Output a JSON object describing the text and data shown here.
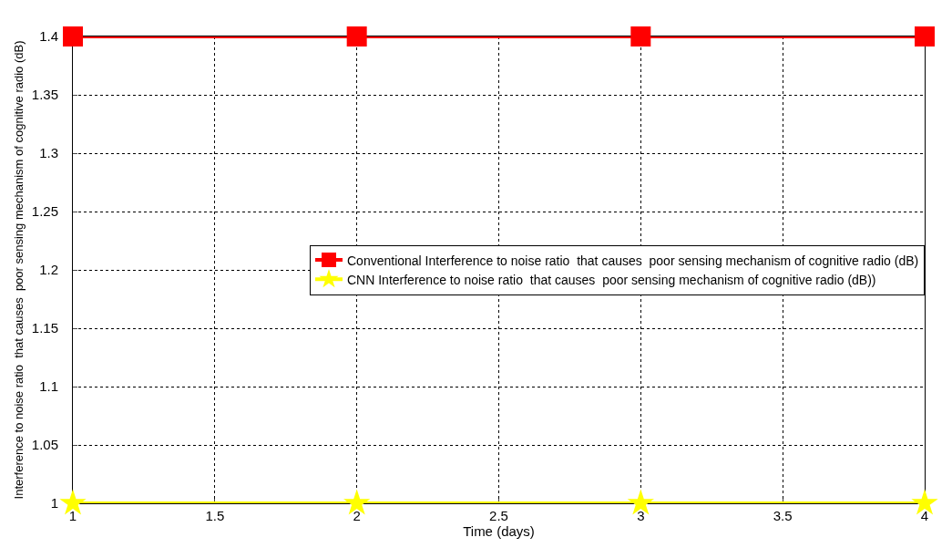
{
  "chart_data": {
    "type": "line",
    "xlabel": "Time (days)",
    "ylabel": "Interference to noise ratio  that causes  poor sensing mechanism of cognitive radio (dB)",
    "x": [
      1,
      2,
      3,
      4
    ],
    "series": [
      {
        "name": "Conventional Interference to noise ratio  that causes  poor sensing mechanism of cognitive radio (dB)",
        "color": "#ff0000",
        "values": [
          1.4,
          1.4,
          1.4,
          1.4
        ],
        "marker": "square"
      },
      {
        "name": "CNN Interference to noise ratio  that causes  poor sensing mechanism of cognitive radio (dB))",
        "color": "#ffff00",
        "values": [
          1.0,
          1.0,
          1.0,
          1.0
        ],
        "marker": "star"
      }
    ],
    "xlim": [
      1,
      4
    ],
    "xticks": [
      1,
      1.5,
      2,
      2.5,
      3,
      3.5,
      4
    ],
    "ylim": [
      1,
      1.4
    ],
    "yticks": [
      1,
      1.05,
      1.1,
      1.15,
      1.2,
      1.25,
      1.3,
      1.35,
      1.4
    ],
    "grid": true,
    "legend": "right",
    "line_style": "solid"
  }
}
